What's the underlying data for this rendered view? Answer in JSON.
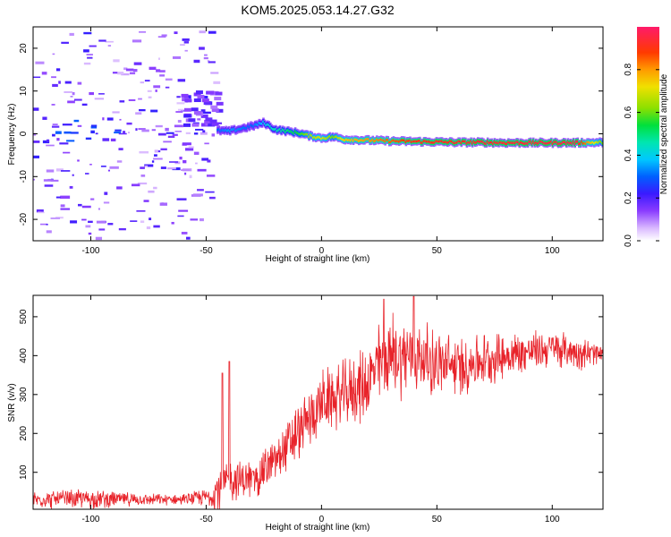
{
  "title": "KOM5.2025.053.14.27.G32",
  "colors": {
    "snr_line": "#e8232a",
    "axes": "#000000"
  },
  "colormap": [
    "#ffffff",
    "#f2e6ff",
    "#b48cff",
    "#6a00ff",
    "#2a2aff",
    "#00c8ff",
    "#00e070",
    "#a8e000",
    "#ffd000",
    "#ff6a00",
    "#e8003a",
    "#ff1a6a"
  ],
  "chart_data": [
    {
      "type": "heatmap",
      "title": "KOM5.2025.053.14.27.G32",
      "xlabel": "Height of straight line (km)",
      "ylabel": "Frequency (Hz)",
      "xlim": [
        -125,
        122
      ],
      "ylim": [
        -25,
        25
      ],
      "x_ticks": [
        "-100",
        "-50",
        "0",
        "50",
        "100"
      ],
      "x_tick_values": [
        -100,
        -50,
        0,
        50,
        100
      ],
      "y_ticks": [
        "-20",
        "-10",
        "0",
        "10",
        "20"
      ],
      "y_tick_values": [
        -20,
        -10,
        0,
        10,
        20
      ],
      "colorbar": {
        "label": "Normalized spectral amplitude",
        "range": [
          0,
          1
        ],
        "ticks": [
          "0.0",
          "0.2",
          "0.4",
          "0.6",
          "0.8"
        ],
        "tick_values": [
          0.0,
          0.2,
          0.4,
          0.6,
          0.8
        ]
      },
      "ridge": {
        "height_km": [
          -45,
          -40,
          -30,
          -25,
          -20,
          -15,
          -10,
          -5,
          0,
          5,
          10,
          20,
          30,
          40,
          50,
          60,
          70,
          80,
          90,
          100,
          110,
          122
        ],
        "frequency_hz": [
          0.8,
          0.6,
          1.8,
          2.6,
          1.0,
          0.6,
          0.2,
          -0.5,
          -1.0,
          -0.7,
          -1.3,
          -1.5,
          -1.7,
          -1.8,
          -1.9,
          -2.0,
          -2.0,
          -2.1,
          -2.1,
          -2.1,
          -2.1,
          -2.0
        ],
        "amplitude": [
          0.3,
          0.35,
          0.3,
          0.4,
          0.45,
          0.5,
          0.55,
          0.65,
          0.7,
          0.6,
          0.75,
          0.8,
          0.85,
          0.9,
          0.92,
          0.92,
          0.95,
          0.93,
          0.95,
          0.95,
          0.97,
          0.6
        ]
      },
      "noise_region_km": [
        -125,
        -45
      ]
    },
    {
      "type": "line",
      "xlabel": "Height of straight line (km)",
      "ylabel": "SNR (v/v)",
      "xlim": [
        -125,
        122
      ],
      "ylim": [
        5,
        555
      ],
      "x_ticks": [
        "-100",
        "-50",
        "0",
        "50",
        "100"
      ],
      "x_tick_values": [
        -100,
        -50,
        0,
        50,
        100
      ],
      "y_ticks": [
        "100",
        "200",
        "300",
        "400",
        "500"
      ],
      "y_tick_values": [
        100,
        200,
        300,
        400,
        500
      ],
      "envelope": {
        "height_km": [
          -125,
          -100,
          -80,
          -60,
          -48,
          -45,
          -40,
          -30,
          -20,
          -10,
          0,
          10,
          20,
          25,
          30,
          40,
          50,
          60,
          70,
          80,
          90,
          100,
          110,
          122
        ],
        "snr_mean": [
          30,
          32,
          30,
          30,
          38,
          60,
          80,
          80,
          130,
          200,
          280,
          300,
          330,
          380,
          400,
          400,
          380,
          370,
          390,
          400,
          410,
          420,
          410,
          400
        ],
        "snr_spread": [
          25,
          30,
          18,
          15,
          30,
          80,
          60,
          60,
          70,
          90,
          90,
          100,
          110,
          120,
          130,
          110,
          100,
          90,
          80,
          70,
          60,
          55,
          50,
          40
        ]
      },
      "peaks": [
        {
          "height_km": -43,
          "snr": 355
        },
        {
          "height_km": -40,
          "snr": 385
        },
        {
          "height_km": 27,
          "snr": 545
        },
        {
          "height_km": 40,
          "snr": 552
        }
      ]
    }
  ]
}
